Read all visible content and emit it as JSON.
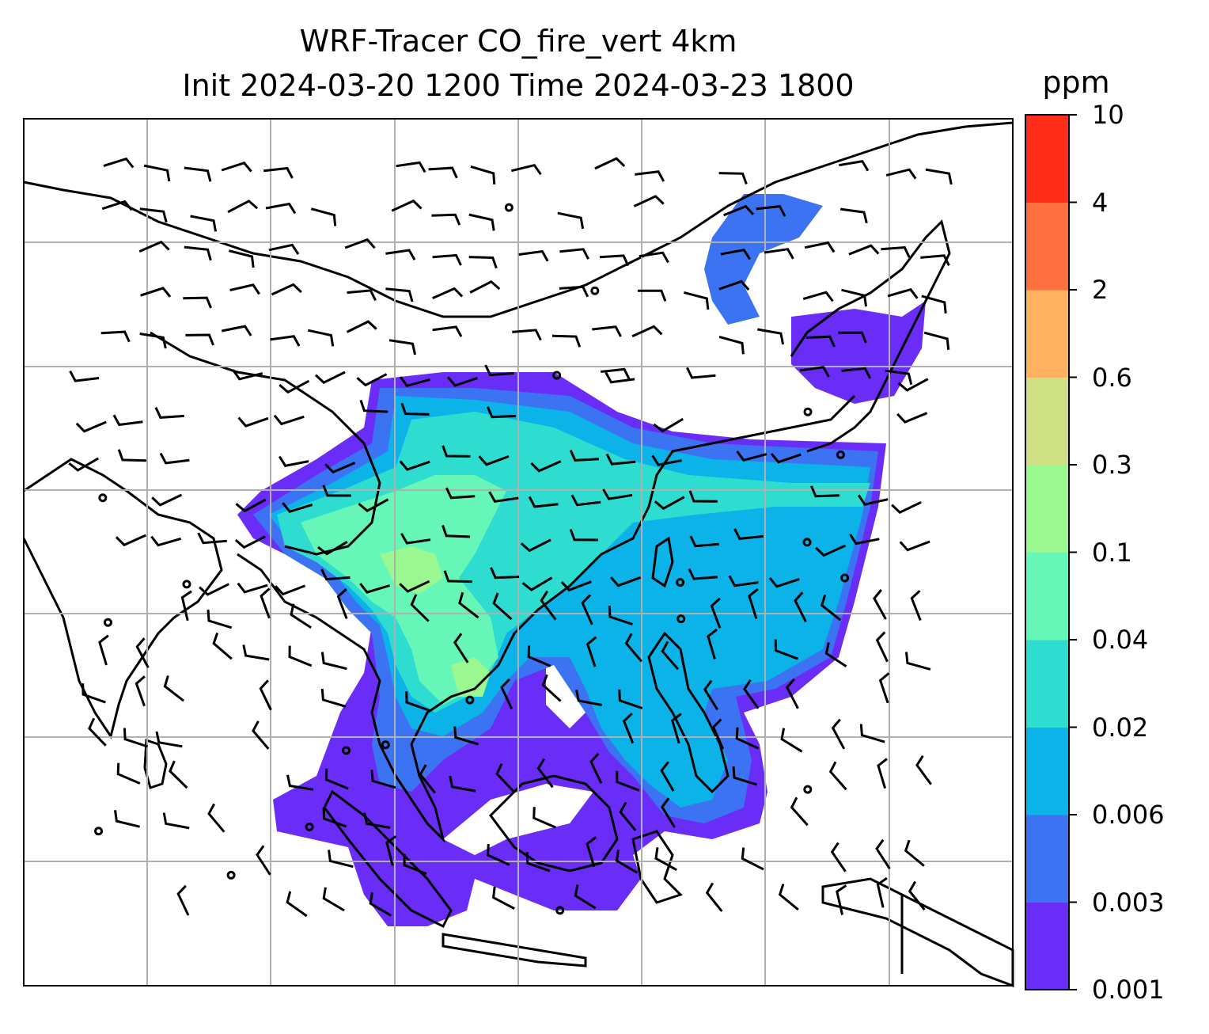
{
  "title": {
    "line1": "WRF-Tracer CO_fire_vert 4km",
    "line2": "Init 2024-03-20 1200 Time 2024-03-23 1800"
  },
  "colorbar": {
    "unit": "ppm",
    "levels": [
      "0.001",
      "0.003",
      "0.006",
      "0.02",
      "0.04",
      "0.1",
      "0.3",
      "0.6",
      "2",
      "4",
      "10"
    ],
    "colors": [
      "#6a2cf7",
      "#3b73f2",
      "#0bb3e8",
      "#2fdcd0",
      "#66f7b8",
      "#9bf78f",
      "#d0e085",
      "#ffb061",
      "#ff7040",
      "#ff2d1a"
    ]
  },
  "map": {
    "gridlines": true,
    "gridline_color": "#b0b0b0",
    "coastline_color": "#000000",
    "barb_color": "#000000"
  }
}
